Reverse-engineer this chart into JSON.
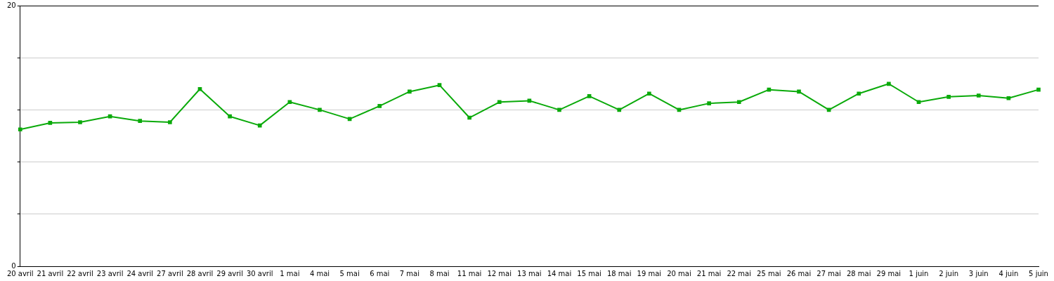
{
  "chart_data": {
    "type": "line",
    "categories": [
      "20 avril",
      "21 avril",
      "22 avril",
      "23 avril",
      "24 avril",
      "27 avril",
      "28 avril",
      "29 avril",
      "30 avril",
      "1 mai",
      "4 mai",
      "5 mai",
      "6 mai",
      "7 mai",
      "8 mai",
      "11 mai",
      "12 mai",
      "13 mai",
      "14 mai",
      "15 mai",
      "18 mai",
      "19 mai",
      "20 mai",
      "21 mai",
      "22 mai",
      "25 mai",
      "26 mai",
      "27 mai",
      "28 mai",
      "29 mai",
      "1 juin",
      "2 juin",
      "3 juin",
      "4 juin",
      "5 juin"
    ],
    "series": [
      {
        "color": "#0aaa0a",
        "values": [
          10.5,
          11.0,
          11.05,
          11.5,
          11.15,
          11.05,
          13.6,
          11.5,
          10.8,
          12.6,
          12.0,
          11.3,
          12.3,
          13.4,
          13.9,
          11.4,
          12.6,
          12.7,
          12.0,
          13.05,
          12.0,
          13.25,
          12.0,
          12.5,
          12.6,
          13.55,
          13.4,
          12.0,
          13.25,
          14.0,
          12.6,
          13.0,
          13.1,
          12.9,
          13.55
        ]
      }
    ],
    "ylim": [
      0,
      20
    ],
    "yticks": [
      0,
      {
        "value": 4,
        "label": null
      },
      {
        "value": 8,
        "label": null
      },
      {
        "value": 12,
        "label": null
      },
      {
        "value": 16,
        "label": null
      },
      20
    ],
    "grid": "y",
    "legend": false,
    "marker": "square",
    "line_style": "solid"
  }
}
